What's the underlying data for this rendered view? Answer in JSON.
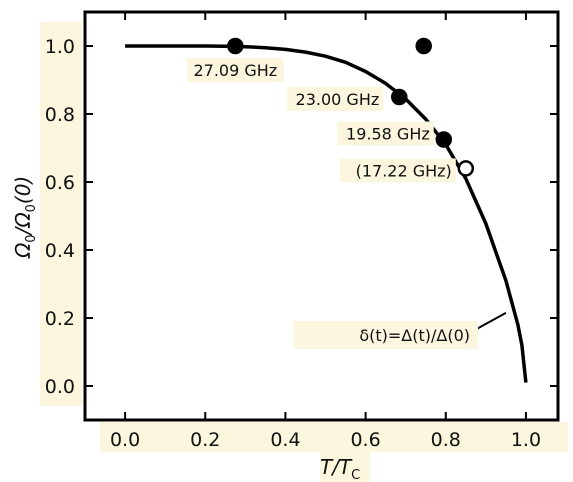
{
  "chart_data": {
    "type": "scatter",
    "title": "",
    "xlabel": {
      "main": "T/T",
      "sub": "C"
    },
    "ylabel": {
      "main": "Ω",
      "sub1": "0",
      "mid": "/Ω",
      "sub2": "0",
      "tail": "(0)"
    },
    "xlim": [
      -0.1,
      1.08
    ],
    "ylim": [
      -0.1,
      1.1
    ],
    "xticks": [
      0.0,
      0.2,
      0.4,
      0.6,
      0.8,
      1.0
    ],
    "xtick_labels": [
      "0.0",
      "0.2",
      "0.4",
      "0.6",
      "0.8",
      "1.0"
    ],
    "yticks": [
      0.0,
      0.2,
      0.4,
      0.6,
      0.8,
      1.0
    ],
    "ytick_labels": [
      "0.0",
      "0.2",
      "0.4",
      "0.6",
      "0.8",
      "1.0"
    ],
    "grid": false,
    "curve": {
      "label": "δ(t)=Δ(t)/Δ(0)",
      "x": [
        0.0,
        0.1,
        0.2,
        0.25,
        0.3,
        0.35,
        0.4,
        0.45,
        0.5,
        0.55,
        0.6,
        0.65,
        0.7,
        0.75,
        0.8,
        0.85,
        0.9,
        0.95,
        0.98,
        0.99,
        1.0
      ],
      "y": [
        1.0,
        1.0,
        1.0,
        0.999,
        0.998,
        0.995,
        0.99,
        0.982,
        0.97,
        0.952,
        0.925,
        0.89,
        0.844,
        0.785,
        0.71,
        0.61,
        0.478,
        0.31,
        0.18,
        0.12,
        0.01
      ]
    },
    "points": [
      {
        "x": 0.275,
        "y": 1.0,
        "filled": true,
        "label": "27.09 GHz"
      },
      {
        "x": 0.745,
        "y": 1.0,
        "filled": true,
        "label": ""
      },
      {
        "x": 0.684,
        "y": 0.85,
        "filled": true,
        "label": "23.00 GHz"
      },
      {
        "x": 0.795,
        "y": 0.725,
        "filled": true,
        "label": "19.58 GHz"
      },
      {
        "x": 0.85,
        "y": 0.64,
        "filled": false,
        "label": "(17.22 GHz)"
      }
    ]
  }
}
